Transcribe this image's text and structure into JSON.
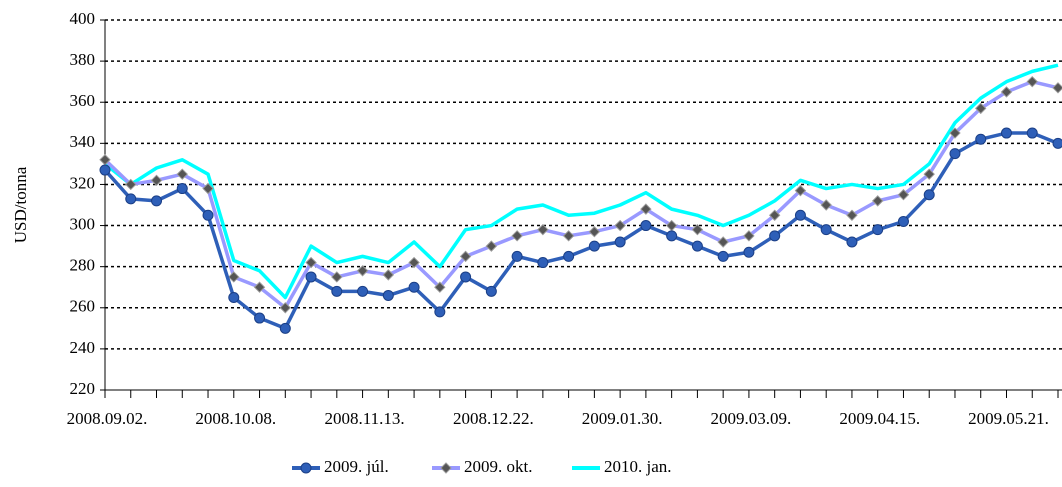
{
  "chart_data": {
    "type": "line",
    "y_label": "USD/tonna",
    "categories": [
      "2008.09.02.",
      null,
      null,
      null,
      null,
      "2008.10.08.",
      null,
      null,
      null,
      null,
      "2008.11.13.",
      null,
      null,
      null,
      null,
      "2008.12.22.",
      null,
      null,
      null,
      null,
      "2009.01.30.",
      null,
      null,
      null,
      null,
      "2009.03.09.",
      null,
      null,
      null,
      null,
      "2009.04.15.",
      null,
      null,
      null,
      null,
      "2009.05.21.",
      null,
      null
    ],
    "series": [
      {
        "name": "2009. júl.",
        "color": "#2e5fb8",
        "marker": "circle",
        "values": [
          327,
          313,
          312,
          318,
          305,
          265,
          255,
          250,
          275,
          268,
          268,
          266,
          270,
          258,
          275,
          268,
          285,
          282,
          285,
          290,
          292,
          300,
          295,
          290,
          285,
          287,
          295,
          305,
          298,
          292,
          298,
          302,
          315,
          335,
          342,
          345,
          345,
          340
        ]
      },
      {
        "name": "2009. okt.",
        "color": "#9999ff",
        "marker": "diamond",
        "values": [
          332,
          320,
          322,
          325,
          318,
          275,
          270,
          260,
          282,
          275,
          278,
          276,
          282,
          270,
          285,
          290,
          295,
          298,
          295,
          297,
          300,
          308,
          300,
          298,
          292,
          295,
          305,
          317,
          310,
          305,
          312,
          315,
          325,
          345,
          357,
          365,
          370,
          367
        ]
      },
      {
        "name": "2010. jan.",
        "color": "#00ffff",
        "marker": "none",
        "values": [
          330,
          320,
          328,
          332,
          325,
          283,
          278,
          265,
          290,
          282,
          285,
          282,
          292,
          280,
          298,
          300,
          308,
          310,
          305,
          306,
          310,
          316,
          308,
          305,
          300,
          305,
          312,
          322,
          318,
          320,
          318,
          320,
          330,
          350,
          362,
          370,
          375,
          378
        ]
      }
    ],
    "ylim": [
      220,
      400
    ],
    "yticks": [
      220,
      240,
      260,
      280,
      300,
      320,
      340,
      360,
      380,
      400
    ],
    "grid": true,
    "legend": "bottom"
  }
}
